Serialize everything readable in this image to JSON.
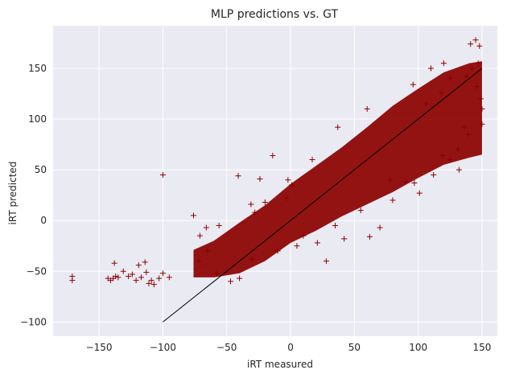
{
  "chart_data": {
    "type": "scatter",
    "title": "MLP predictions vs. GT",
    "xlabel": "iRT measured",
    "ylabel": "iRT predicted",
    "xlim": [
      -186,
      162
    ],
    "ylim": [
      -114,
      192
    ],
    "xticks": [
      -150,
      -100,
      -50,
      0,
      50,
      100,
      150
    ],
    "yticks": [
      -100,
      -50,
      0,
      50,
      100,
      150
    ],
    "xtick_labels": [
      "−150",
      "−100",
      "−50",
      "0",
      "50",
      "100",
      "150"
    ],
    "ytick_labels": [
      "−100",
      "−50",
      "0",
      "50",
      "100",
      "150"
    ],
    "grid": true,
    "background": "#eaeaf2",
    "grid_color": "#ffffff",
    "marker": "+",
    "marker_color": "#8b0000",
    "reference_line": {
      "x": [
        -100,
        150
      ],
      "y": [
        -100,
        150
      ],
      "color": "#000000"
    },
    "points": [
      [
        -171,
        -55
      ],
      [
        -171,
        -59
      ],
      [
        -143,
        -57
      ],
      [
        -141,
        -59
      ],
      [
        -139,
        -57
      ],
      [
        -137,
        -55
      ],
      [
        -138,
        -42
      ],
      [
        -135,
        -56
      ],
      [
        -131,
        -50
      ],
      [
        -127,
        -55
      ],
      [
        -124,
        -53
      ],
      [
        -121,
        -59
      ],
      [
        -119,
        -44
      ],
      [
        -117,
        -56
      ],
      [
        -114,
        -41
      ],
      [
        -113,
        -51
      ],
      [
        -111,
        -62
      ],
      [
        -109,
        -59
      ],
      [
        -107,
        -63
      ],
      [
        -103,
        -57
      ],
      [
        -100,
        -52
      ],
      [
        -95,
        -56
      ],
      [
        -100,
        45
      ],
      [
        -76,
        5
      ],
      [
        -71,
        -15
      ],
      [
        -66,
        -7
      ],
      [
        -56,
        -5
      ],
      [
        -41,
        44
      ],
      [
        -31,
        16
      ],
      [
        -24,
        41
      ],
      [
        -14,
        64
      ],
      [
        -28,
        8
      ],
      [
        -20,
        18
      ],
      [
        21,
        -22
      ],
      [
        28,
        -40
      ],
      [
        42,
        -18
      ],
      [
        62,
        -16
      ],
      [
        70,
        -7
      ],
      [
        78,
        40
      ],
      [
        97,
        37
      ],
      [
        101,
        27
      ],
      [
        125,
        60
      ],
      [
        119,
        64
      ],
      [
        132,
        50
      ],
      [
        139,
        85
      ],
      [
        141,
        174
      ],
      [
        145,
        178
      ],
      [
        148,
        172
      ],
      [
        147,
        155
      ],
      [
        142,
        150
      ],
      [
        146,
        132
      ],
      [
        96,
        134
      ],
      [
        60,
        110
      ],
      [
        37,
        92
      ],
      [
        17,
        60
      ],
      [
        -2,
        40
      ],
      [
        -3,
        22
      ],
      [
        1,
        35
      ],
      [
        -65,
        -30
      ],
      [
        -72,
        -40
      ],
      [
        -58,
        -52
      ],
      [
        -47,
        -60
      ],
      [
        -40,
        -57
      ],
      [
        -30,
        -38
      ],
      [
        5,
        -25
      ],
      [
        -10,
        -30
      ],
      [
        10,
        -15
      ],
      [
        55,
        10
      ],
      [
        35,
        -5
      ],
      [
        80,
        20
      ],
      [
        90,
        38
      ],
      [
        112,
        45
      ],
      [
        131,
        70
      ],
      [
        136,
        92
      ],
      [
        106,
        115
      ],
      [
        118,
        126
      ],
      [
        125,
        140
      ],
      [
        150,
        110
      ],
      [
        150,
        95
      ],
      [
        149,
        120
      ],
      [
        138,
        142
      ],
      [
        120,
        155
      ],
      [
        110,
        150
      ]
    ],
    "band_color": "#8b0000"
  }
}
